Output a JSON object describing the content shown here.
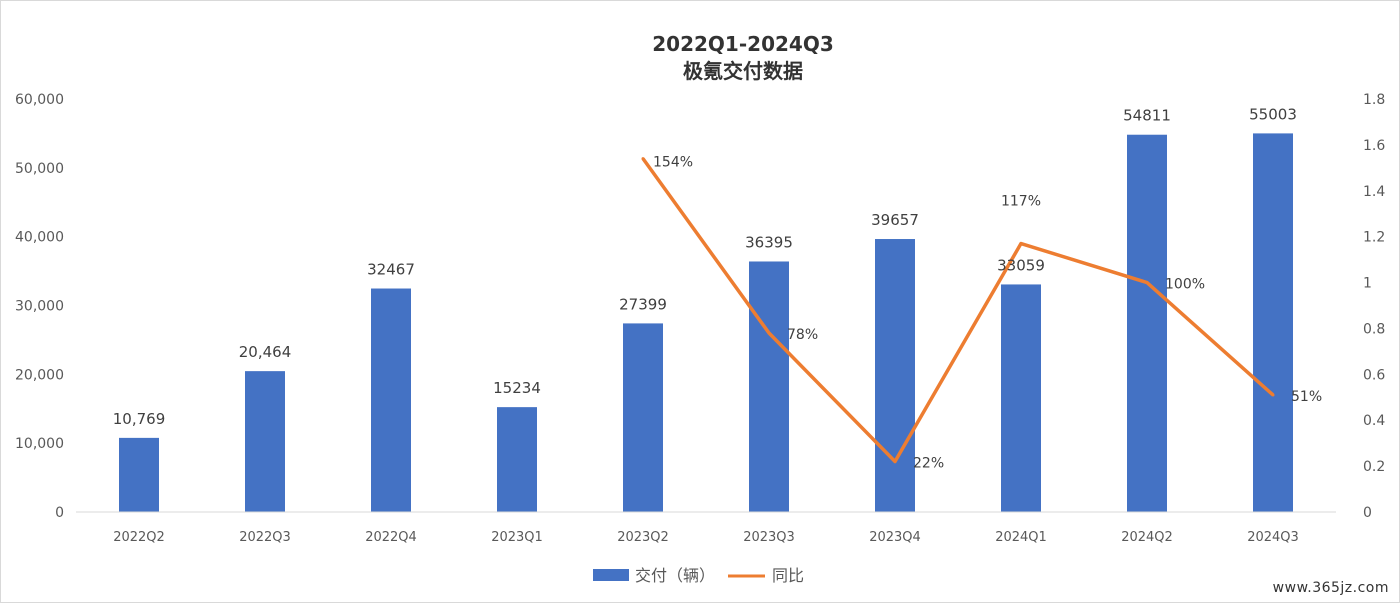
{
  "watermark": "www.365jz.com",
  "chart_data": {
    "type": "bar",
    "title": "2022Q1-2024Q3",
    "subtitle": "极氪交付数据",
    "categories": [
      "2022Q2",
      "2022Q3",
      "2022Q4",
      "2023Q1",
      "2023Q2",
      "2023Q3",
      "2023Q4",
      "2024Q1",
      "2024Q2",
      "2024Q3"
    ],
    "y_left": {
      "ticks": [
        "0",
        "10,000",
        "20,000",
        "30,000",
        "40,000",
        "50,000",
        "60,000"
      ],
      "ylim": [
        0,
        60000
      ]
    },
    "y_right": {
      "ticks": [
        "0",
        "0.2",
        "0.4",
        "0.6",
        "0.8",
        "1",
        "1.2",
        "1.4",
        "1.6",
        "1.8"
      ],
      "ylim": [
        0,
        1.8
      ]
    },
    "grid": false,
    "legend_position": "bottom",
    "series": [
      {
        "name": "交付（辆）",
        "type": "bar",
        "axis": "left",
        "color": "#4472c4",
        "values": [
          10769,
          20464,
          32467,
          15234,
          27399,
          36395,
          39657,
          33059,
          54811,
          55003
        ],
        "labels": [
          "10,769",
          "20,464",
          "32467",
          "15234",
          "27399",
          "36395",
          "39657",
          "33059",
          "54811",
          "55003"
        ]
      },
      {
        "name": "同比",
        "type": "line",
        "axis": "right",
        "color": "#ed7d31",
        "values": [
          null,
          null,
          null,
          null,
          1.54,
          0.78,
          0.22,
          1.17,
          1.0,
          0.51
        ],
        "labels": [
          null,
          null,
          null,
          null,
          "154%",
          "78%",
          "22%",
          "117%",
          "100%",
          "51%"
        ]
      }
    ]
  }
}
